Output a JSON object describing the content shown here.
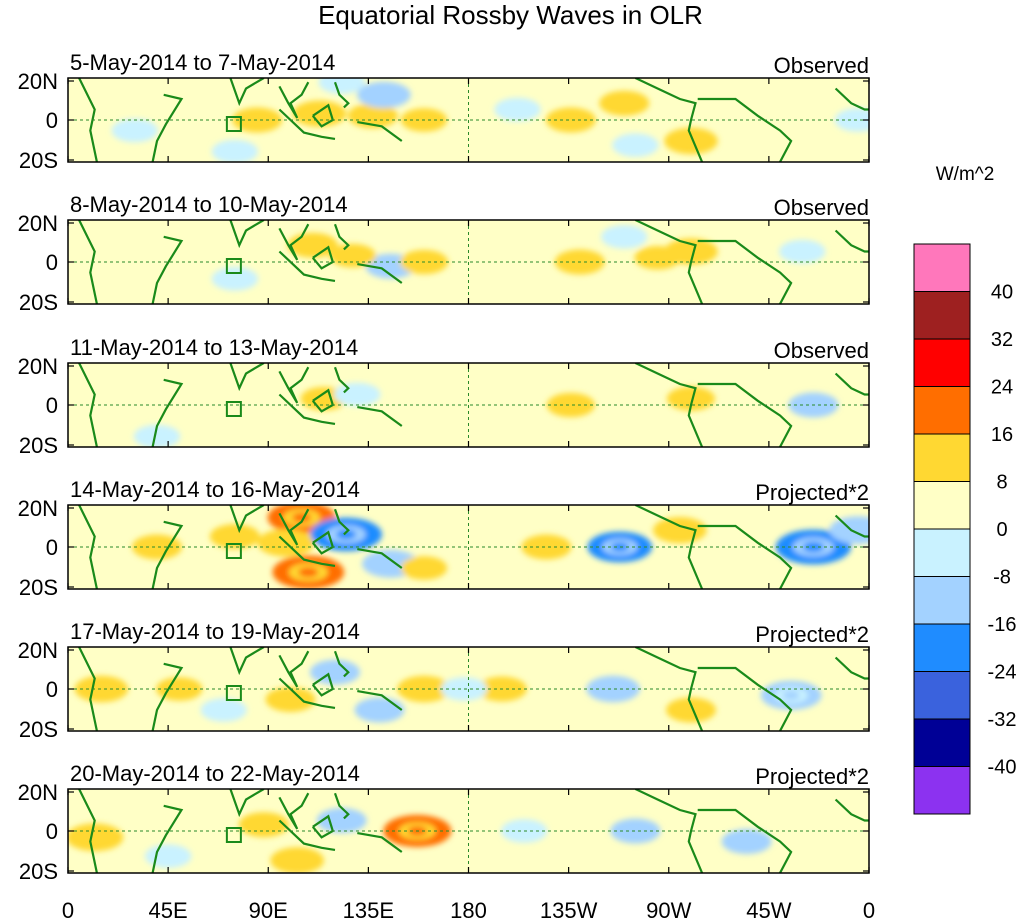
{
  "chart_data": {
    "type": "heatmap",
    "title": "Equatorial Rossby Waves in OLR",
    "units": "W/m^2",
    "x_ticks": [
      "0",
      "45E",
      "90E",
      "135E",
      "180",
      "135W",
      "90W",
      "45W",
      "0"
    ],
    "y_ticks": [
      "20N",
      "0",
      "20S"
    ],
    "lon_range": [
      0,
      360
    ],
    "lat_range": [
      -20,
      20
    ],
    "colorbar": {
      "levels": [
        "40",
        "32",
        "24",
        "16",
        "8",
        "0",
        "-8",
        "-16",
        "-24",
        "-32",
        "-40"
      ],
      "colors": [
        "#ff77bb",
        "#9e2020",
        "#ff0000",
        "#ff6e00",
        "#ffd832",
        "#ffffc6",
        "#c9f2ff",
        "#a3d2ff",
        "#1f8cff",
        "#3a62dd",
        "#000096",
        "#8c32f0"
      ]
    },
    "panels": [
      {
        "date_range": "5-May-2014 to 7-May-2014",
        "label": "Observed",
        "anomalies": [
          {
            "lon": 85,
            "lat": 0,
            "value": 10
          },
          {
            "lon": 113,
            "lat": 3,
            "value": 12
          },
          {
            "lon": 137,
            "lat": 2,
            "value": 10
          },
          {
            "lon": 160,
            "lat": 0,
            "value": 8
          },
          {
            "lon": 142,
            "lat": 12,
            "value": -12
          },
          {
            "lon": 123,
            "lat": 18,
            "value": -8
          },
          {
            "lon": 30,
            "lat": -5,
            "value": -8
          },
          {
            "lon": 75,
            "lat": -15,
            "value": -8
          },
          {
            "lon": 226,
            "lat": 0,
            "value": 10
          },
          {
            "lon": 250,
            "lat": 8,
            "value": 10
          },
          {
            "lon": 280,
            "lat": -10,
            "value": 12
          },
          {
            "lon": 202,
            "lat": 5,
            "value": -8
          },
          {
            "lon": 255,
            "lat": -12,
            "value": -8
          },
          {
            "lon": 355,
            "lat": 0,
            "value": -8
          }
        ]
      },
      {
        "date_range": "8-May-2014 to 10-May-2014",
        "label": "Observed",
        "anomalies": [
          {
            "lon": 110,
            "lat": 8,
            "value": 10
          },
          {
            "lon": 145,
            "lat": -2,
            "value": -10
          },
          {
            "lon": 128,
            "lat": 3,
            "value": 8
          },
          {
            "lon": 160,
            "lat": 0,
            "value": 9
          },
          {
            "lon": 230,
            "lat": 0,
            "value": 10
          },
          {
            "lon": 280,
            "lat": 5,
            "value": 12
          },
          {
            "lon": 75,
            "lat": -8,
            "value": -8
          },
          {
            "lon": 250,
            "lat": 12,
            "value": -8
          },
          {
            "lon": 330,
            "lat": 5,
            "value": -8
          },
          {
            "lon": 265,
            "lat": 2,
            "value": 8
          }
        ]
      },
      {
        "date_range": "11-May-2014 to 13-May-2014",
        "label": "Observed",
        "anomalies": [
          {
            "lon": 115,
            "lat": 3,
            "value": 8
          },
          {
            "lon": 130,
            "lat": 5,
            "value": -8
          },
          {
            "lon": 226,
            "lat": 0,
            "value": 9
          },
          {
            "lon": 280,
            "lat": 3,
            "value": 9
          },
          {
            "lon": 335,
            "lat": 0,
            "value": -10
          },
          {
            "lon": 40,
            "lat": -15,
            "value": -8
          }
        ]
      },
      {
        "date_range": "14-May-2014 to 16-May-2014",
        "label": "Projected*2",
        "anomalies": [
          {
            "lon": 105,
            "lat": 14,
            "value": 20
          },
          {
            "lon": 98,
            "lat": 2,
            "value": 14
          },
          {
            "lon": 108,
            "lat": -12,
            "value": 22
          },
          {
            "lon": 125,
            "lat": 6,
            "value": -22
          },
          {
            "lon": 145,
            "lat": -8,
            "value": -14
          },
          {
            "lon": 40,
            "lat": 0,
            "value": 10
          },
          {
            "lon": 75,
            "lat": 5,
            "value": 10
          },
          {
            "lon": 215,
            "lat": 0,
            "value": 10
          },
          {
            "lon": 248,
            "lat": 0,
            "value": -18
          },
          {
            "lon": 275,
            "lat": 8,
            "value": 12
          },
          {
            "lon": 335,
            "lat": 0,
            "value": -24
          },
          {
            "lon": 355,
            "lat": 8,
            "value": -14
          },
          {
            "lon": 160,
            "lat": -10,
            "value": 8
          }
        ]
      },
      {
        "date_range": "17-May-2014 to 19-May-2014",
        "label": "Projected*2",
        "anomalies": [
          {
            "lon": 15,
            "lat": 0,
            "value": 12
          },
          {
            "lon": 50,
            "lat": 0,
            "value": 8
          },
          {
            "lon": 100,
            "lat": -5,
            "value": 10
          },
          {
            "lon": 160,
            "lat": 0,
            "value": 12
          },
          {
            "lon": 195,
            "lat": 0,
            "value": 10
          },
          {
            "lon": 120,
            "lat": 8,
            "value": -10
          },
          {
            "lon": 140,
            "lat": -10,
            "value": -10
          },
          {
            "lon": 178,
            "lat": 0,
            "value": -8
          },
          {
            "lon": 245,
            "lat": 0,
            "value": -12
          },
          {
            "lon": 280,
            "lat": -10,
            "value": 10
          },
          {
            "lon": 325,
            "lat": -3,
            "value": -16
          },
          {
            "lon": 70,
            "lat": -10,
            "value": -8
          }
        ]
      },
      {
        "date_range": "20-May-2014 to 22-May-2014",
        "label": "Projected*2",
        "anomalies": [
          {
            "lon": 12,
            "lat": -3,
            "value": 14
          },
          {
            "lon": 88,
            "lat": 3,
            "value": 10
          },
          {
            "lon": 103,
            "lat": -14,
            "value": 12
          },
          {
            "lon": 157,
            "lat": 0,
            "value": 20
          },
          {
            "lon": 123,
            "lat": 5,
            "value": -10
          },
          {
            "lon": 205,
            "lat": 0,
            "value": -8
          },
          {
            "lon": 255,
            "lat": 0,
            "value": -10
          },
          {
            "lon": 305,
            "lat": -5,
            "value": -10
          },
          {
            "lon": 45,
            "lat": -12,
            "value": -8
          }
        ]
      }
    ]
  }
}
